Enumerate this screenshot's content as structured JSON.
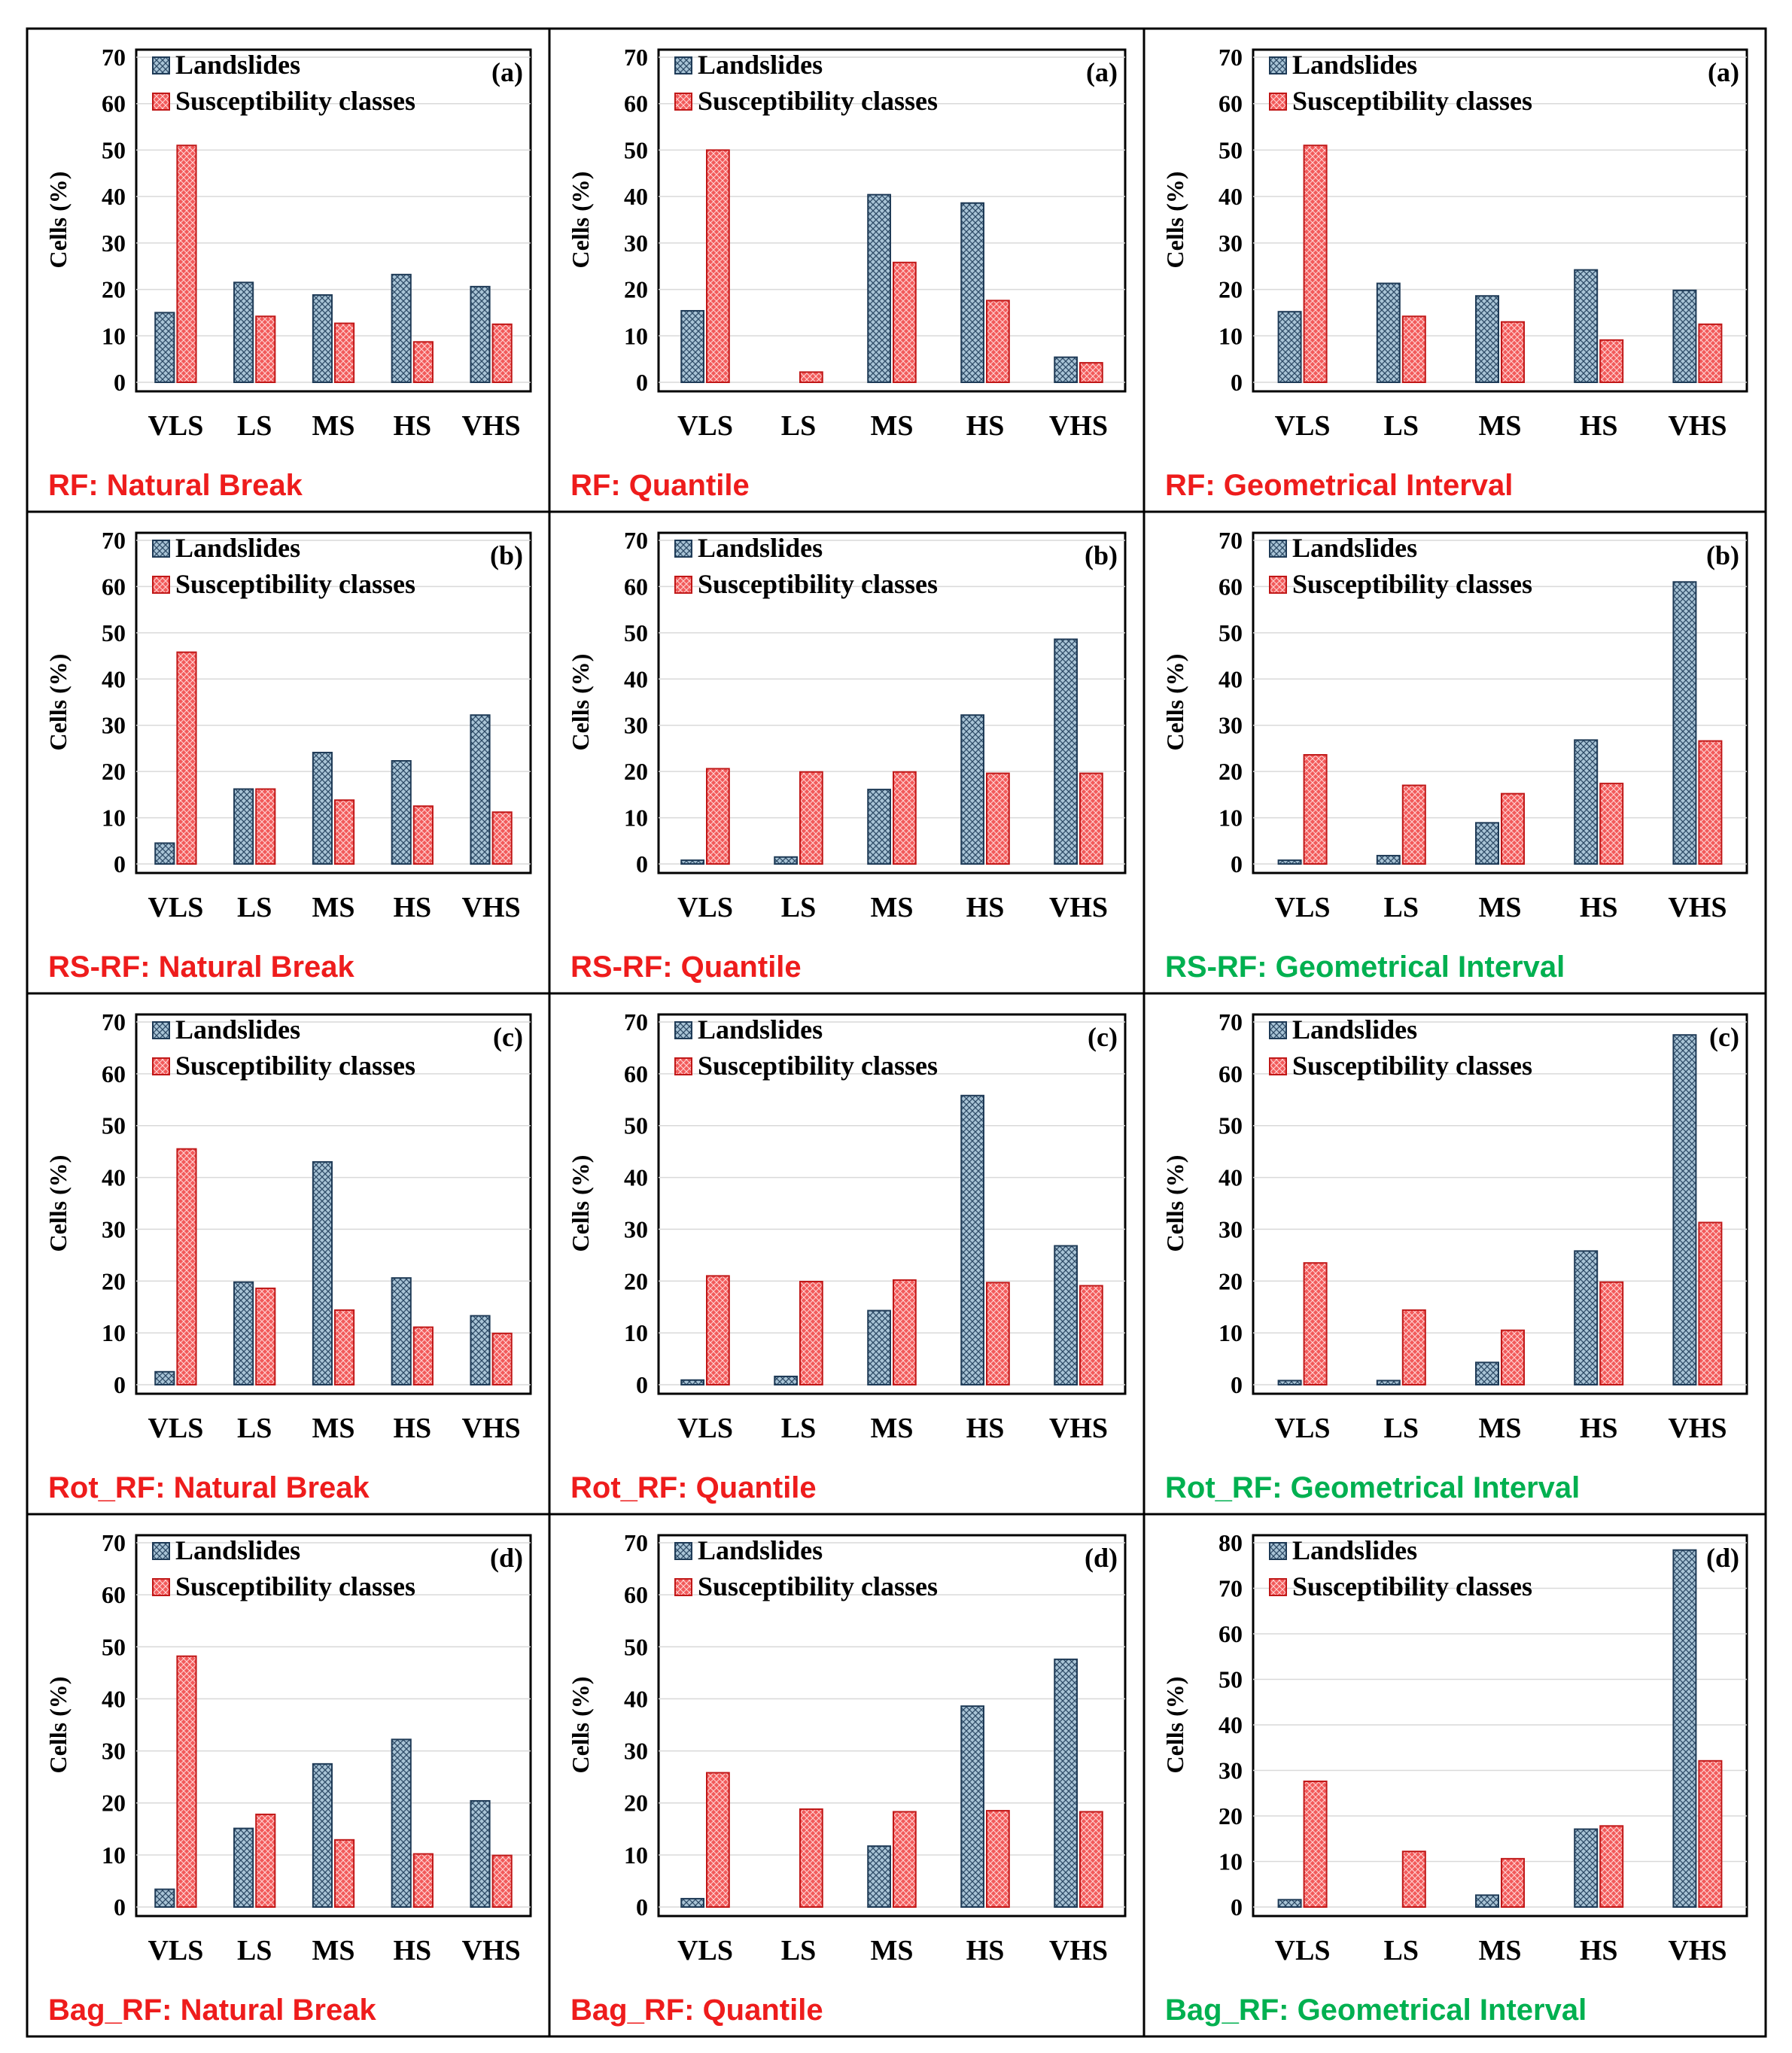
{
  "colors": {
    "landslides_fill": "#8fb3c9",
    "landslides_stroke": "#1f3b57",
    "susceptibility_fill": "#f05454",
    "susceptibility_stroke": "#c01818",
    "caption_red": "#ee1c1c",
    "caption_green": "#00b050",
    "grid": "#d9d9d9"
  },
  "chart_data": [
    {
      "type": "bar",
      "title": "RF: Natural Break",
      "caption_color": "red",
      "tag": "(a)",
      "ylabel": "Cells (%)",
      "ylim": [
        0,
        70
      ],
      "yticks": [
        0,
        10,
        20,
        30,
        40,
        50,
        60,
        70
      ],
      "categories": [
        "VLS",
        "LS",
        "MS",
        "HS",
        "VHS"
      ],
      "legend": [
        "Landslides",
        "Susceptibility classes"
      ],
      "series": [
        {
          "name": "Landslides",
          "values": [
            15,
            21.5,
            18.8,
            23.2,
            20.6
          ]
        },
        {
          "name": "Susceptibility classes",
          "values": [
            51,
            14.2,
            12.7,
            8.7,
            12.5
          ]
        }
      ]
    },
    {
      "type": "bar",
      "title": "RF: Quantile",
      "caption_color": "red",
      "tag": "(a)",
      "ylabel": "Cells (%)",
      "ylim": [
        0,
        70
      ],
      "yticks": [
        0,
        10,
        20,
        30,
        40,
        50,
        60,
        70
      ],
      "categories": [
        "VLS",
        "LS",
        "MS",
        "HS",
        "VHS"
      ],
      "legend": [
        "Landslides",
        "Susceptibility classes"
      ],
      "series": [
        {
          "name": "Landslides",
          "values": [
            15.4,
            0,
            40.4,
            38.6,
            5.4
          ]
        },
        {
          "name": "Susceptibility classes",
          "values": [
            50,
            2.2,
            25.8,
            17.6,
            4.2
          ]
        }
      ]
    },
    {
      "type": "bar",
      "title": "RF: Geometrical Interval",
      "caption_color": "red",
      "tag": "(a)",
      "ylabel": "Cells (%)",
      "ylim": [
        0,
        70
      ],
      "yticks": [
        0,
        10,
        20,
        30,
        40,
        50,
        60,
        70
      ],
      "categories": [
        "VLS",
        "LS",
        "MS",
        "HS",
        "VHS"
      ],
      "legend": [
        "Landslides",
        "Susceptibility classes"
      ],
      "series": [
        {
          "name": "Landslides",
          "values": [
            15.2,
            21.3,
            18.6,
            24.2,
            19.8
          ]
        },
        {
          "name": "Susceptibility classes",
          "values": [
            51,
            14.2,
            13,
            9.1,
            12.5
          ]
        }
      ]
    },
    {
      "type": "bar",
      "title": "RS-RF: Natural Break",
      "caption_color": "red",
      "tag": "(b)",
      "ylabel": "Cells (%)",
      "ylim": [
        0,
        70
      ],
      "yticks": [
        0,
        10,
        20,
        30,
        40,
        50,
        60,
        70
      ],
      "categories": [
        "VLS",
        "LS",
        "MS",
        "HS",
        "VHS"
      ],
      "legend": [
        "Landslides",
        "Susceptibility classes"
      ],
      "series": [
        {
          "name": "Landslides",
          "values": [
            4.5,
            16.2,
            24.1,
            22.3,
            32.2
          ]
        },
        {
          "name": "Susceptibility classes",
          "values": [
            45.8,
            16.2,
            13.8,
            12.5,
            11.2
          ]
        }
      ]
    },
    {
      "type": "bar",
      "title": "RS-RF: Quantile",
      "caption_color": "red",
      "tag": "(b)",
      "ylabel": "Cells (%)",
      "ylim": [
        0,
        70
      ],
      "yticks": [
        0,
        10,
        20,
        30,
        40,
        50,
        60,
        70
      ],
      "categories": [
        "VLS",
        "LS",
        "MS",
        "HS",
        "VHS"
      ],
      "legend": [
        "Landslides",
        "Susceptibility classes"
      ],
      "series": [
        {
          "name": "Landslides",
          "values": [
            0.8,
            1.5,
            16.1,
            32.2,
            48.6
          ]
        },
        {
          "name": "Susceptibility classes",
          "values": [
            20.6,
            19.9,
            19.9,
            19.6,
            19.6
          ]
        }
      ]
    },
    {
      "type": "bar",
      "title": "RS-RF: Geometrical Interval",
      "caption_color": "green",
      "tag": "(b)",
      "ylabel": "Cells (%)",
      "ylim": [
        0,
        70
      ],
      "yticks": [
        0,
        10,
        20,
        30,
        40,
        50,
        60,
        70
      ],
      "categories": [
        "VLS",
        "LS",
        "MS",
        "HS",
        "VHS"
      ],
      "legend": [
        "Landslides",
        "Susceptibility classes"
      ],
      "series": [
        {
          "name": "Landslides",
          "values": [
            0.8,
            1.8,
            8.9,
            26.8,
            61
          ]
        },
        {
          "name": "Susceptibility classes",
          "values": [
            23.6,
            17,
            15.2,
            17.4,
            26.6
          ]
        }
      ]
    },
    {
      "type": "bar",
      "title": "Rot_RF: Natural Break",
      "caption_color": "red",
      "tag": "(c)",
      "ylabel": "Cells (%)",
      "ylim": [
        0,
        70
      ],
      "yticks": [
        0,
        10,
        20,
        30,
        40,
        50,
        60,
        70
      ],
      "categories": [
        "VLS",
        "LS",
        "MS",
        "HS",
        "VHS"
      ],
      "legend": [
        "Landslides",
        "Susceptibility classes"
      ],
      "series": [
        {
          "name": "Landslides",
          "values": [
            2.5,
            19.8,
            43,
            20.6,
            13.3
          ]
        },
        {
          "name": "Susceptibility classes",
          "values": [
            45.5,
            18.6,
            14.4,
            11.1,
            9.9
          ]
        }
      ]
    },
    {
      "type": "bar",
      "title": "Rot_RF: Quantile",
      "caption_color": "red",
      "tag": "(c)",
      "ylabel": "Cells (%)",
      "ylim": [
        0,
        70
      ],
      "yticks": [
        0,
        10,
        20,
        30,
        40,
        50,
        60,
        70
      ],
      "categories": [
        "VLS",
        "LS",
        "MS",
        "HS",
        "VHS"
      ],
      "legend": [
        "Landslides",
        "Susceptibility classes"
      ],
      "series": [
        {
          "name": "Landslides",
          "values": [
            0.9,
            1.6,
            14.3,
            55.8,
            26.8
          ]
        },
        {
          "name": "Susceptibility classes",
          "values": [
            21,
            19.9,
            20.2,
            19.7,
            19.1
          ]
        }
      ]
    },
    {
      "type": "bar",
      "title": "Rot_RF: Geometrical Interval",
      "caption_color": "green",
      "tag": "(c)",
      "ylabel": "Cells (%)",
      "ylim": [
        0,
        70
      ],
      "yticks": [
        0,
        10,
        20,
        30,
        40,
        50,
        60,
        70
      ],
      "categories": [
        "VLS",
        "LS",
        "MS",
        "HS",
        "VHS"
      ],
      "legend": [
        "Landslides",
        "Susceptibility classes"
      ],
      "series": [
        {
          "name": "Landslides",
          "values": [
            0.8,
            0.8,
            4.3,
            25.8,
            67.5
          ]
        },
        {
          "name": "Susceptibility classes",
          "values": [
            23.5,
            14.4,
            10.5,
            19.8,
            31.3
          ]
        }
      ]
    },
    {
      "type": "bar",
      "title": "Bag_RF: Natural Break",
      "caption_color": "red",
      "tag": "(d)",
      "ylabel": "Cells (%)",
      "ylim": [
        0,
        70
      ],
      "yticks": [
        0,
        10,
        20,
        30,
        40,
        50,
        60,
        70
      ],
      "categories": [
        "VLS",
        "LS",
        "MS",
        "HS",
        "VHS"
      ],
      "legend": [
        "Landslides",
        "Susceptibility classes"
      ],
      "series": [
        {
          "name": "Landslides",
          "values": [
            3.4,
            15.1,
            27.5,
            32.2,
            20.4
          ]
        },
        {
          "name": "Susceptibility classes",
          "values": [
            48.2,
            17.8,
            12.9,
            10.2,
            9.9
          ]
        }
      ]
    },
    {
      "type": "bar",
      "title": "Bag_RF: Quantile",
      "caption_color": "red",
      "tag": "(d)",
      "ylabel": "Cells (%)",
      "ylim": [
        0,
        70
      ],
      "yticks": [
        0,
        10,
        20,
        30,
        40,
        50,
        60,
        70
      ],
      "categories": [
        "VLS",
        "LS",
        "MS",
        "HS",
        "VHS"
      ],
      "legend": [
        "Landslides",
        "Susceptibility classes"
      ],
      "series": [
        {
          "name": "Landslides",
          "values": [
            1.6,
            0,
            11.7,
            38.6,
            47.6
          ]
        },
        {
          "name": "Susceptibility classes",
          "values": [
            25.8,
            18.8,
            18.3,
            18.5,
            18.3
          ]
        }
      ]
    },
    {
      "type": "bar",
      "title": "Bag_RF: Geometrical Interval",
      "caption_color": "green",
      "tag": "(d)",
      "ylabel": "Cells (%)",
      "ylim": [
        0,
        80
      ],
      "yticks": [
        0,
        10,
        20,
        30,
        40,
        50,
        60,
        70,
        80
      ],
      "categories": [
        "VLS",
        "LS",
        "MS",
        "HS",
        "VHS"
      ],
      "legend": [
        "Landslides",
        "Susceptibility classes"
      ],
      "series": [
        {
          "name": "Landslides",
          "values": [
            1.6,
            0,
            2.6,
            17.1,
            78.4
          ]
        },
        {
          "name": "Susceptibility classes",
          "values": [
            27.6,
            12.2,
            10.6,
            17.8,
            32.1
          ]
        }
      ]
    }
  ]
}
